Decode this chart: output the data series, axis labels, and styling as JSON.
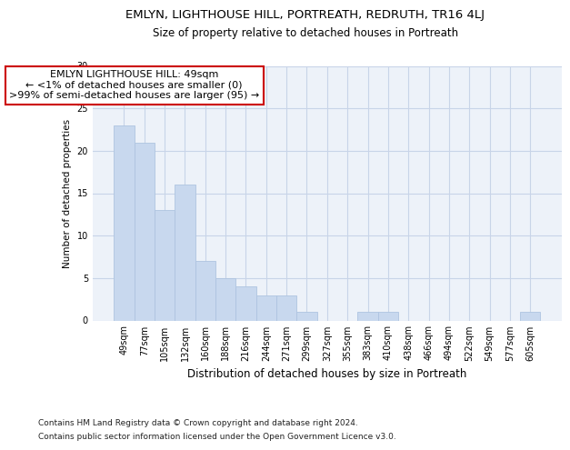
{
  "title": "EMLYN, LIGHTHOUSE HILL, PORTREATH, REDRUTH, TR16 4LJ",
  "subtitle": "Size of property relative to detached houses in Portreath",
  "xlabel": "Distribution of detached houses by size in Portreath",
  "ylabel": "Number of detached properties",
  "categories": [
    "49sqm",
    "77sqm",
    "105sqm",
    "132sqm",
    "160sqm",
    "188sqm",
    "216sqm",
    "244sqm",
    "271sqm",
    "299sqm",
    "327sqm",
    "355sqm",
    "383sqm",
    "410sqm",
    "438sqm",
    "466sqm",
    "494sqm",
    "522sqm",
    "549sqm",
    "577sqm",
    "605sqm"
  ],
  "values": [
    23,
    21,
    13,
    16,
    7,
    5,
    4,
    3,
    3,
    1,
    0,
    0,
    1,
    1,
    0,
    0,
    0,
    0,
    0,
    0,
    1
  ],
  "bar_color": "#c8d8ee",
  "bar_edgecolor": "#aec4e0",
  "annotation_text": "EMLYN LIGHTHOUSE HILL: 49sqm\n← <1% of detached houses are smaller (0)\n>99% of semi-detached houses are larger (95) →",
  "annotation_box_facecolor": "#ffffff",
  "annotation_box_edgecolor": "#cc0000",
  "ylim": [
    0,
    30
  ],
  "yticks": [
    0,
    5,
    10,
    15,
    20,
    25,
    30
  ],
  "grid_color": "#c8d4e8",
  "background_color": "#edf2f9",
  "footer_line1": "Contains HM Land Registry data © Crown copyright and database right 2024.",
  "footer_line2": "Contains public sector information licensed under the Open Government Licence v3.0.",
  "title_fontsize": 9.5,
  "subtitle_fontsize": 8.5,
  "xlabel_fontsize": 8.5,
  "ylabel_fontsize": 7.5,
  "tick_fontsize": 7,
  "annotation_fontsize": 8,
  "footer_fontsize": 6.5
}
